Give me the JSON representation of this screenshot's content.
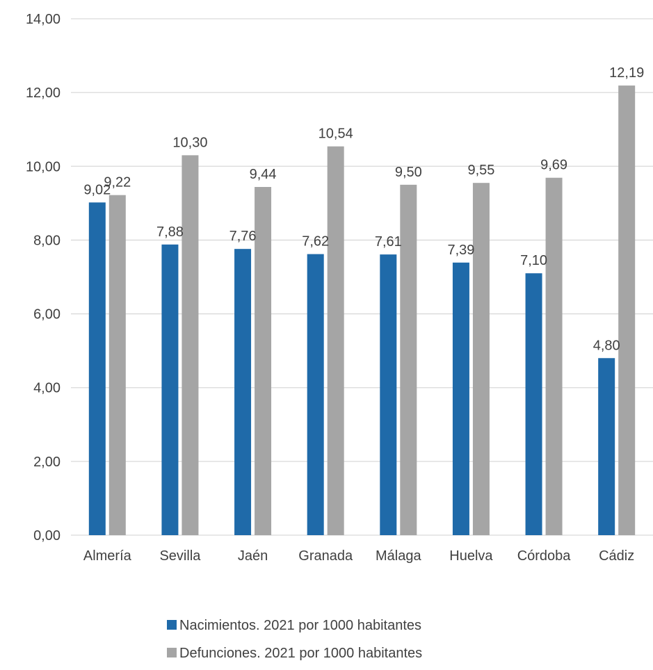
{
  "chart_data": {
    "type": "bar",
    "categories": [
      "Almería",
      "Sevilla",
      "Jaén",
      "Granada",
      "Málaga",
      "Huelva",
      "Córdoba",
      "Cádiz"
    ],
    "series": [
      {
        "name": "Nacimientos. 2021 por 1000 habitantes",
        "color": "#1f6aa9",
        "values": [
          9.02,
          7.88,
          7.76,
          7.62,
          7.61,
          7.39,
          7.1,
          4.8
        ],
        "labels": [
          "9,02",
          "7,88",
          "7,76",
          "7,62",
          "7,61",
          "7,39",
          "7,10",
          "4,80"
        ]
      },
      {
        "name": "Defunciones. 2021 por 1000 habitantes",
        "color": "#a5a5a5",
        "values": [
          9.22,
          10.3,
          9.44,
          10.54,
          9.5,
          9.55,
          9.69,
          12.19
        ],
        "labels": [
          "9,22",
          "10,30",
          "9,44",
          "10,54",
          "9,50",
          "9,55",
          "9,69",
          "12,19"
        ]
      }
    ],
    "ylim": [
      0,
      14
    ],
    "yticks": [
      0,
      2,
      4,
      6,
      8,
      10,
      12,
      14
    ],
    "ytick_labels": [
      "0,00",
      "2,00",
      "4,00",
      "6,00",
      "8,00",
      "10,00",
      "12,00",
      "14,00"
    ],
    "grid": true,
    "legend": "bottom",
    "title": "",
    "xlabel": "",
    "ylabel": ""
  }
}
